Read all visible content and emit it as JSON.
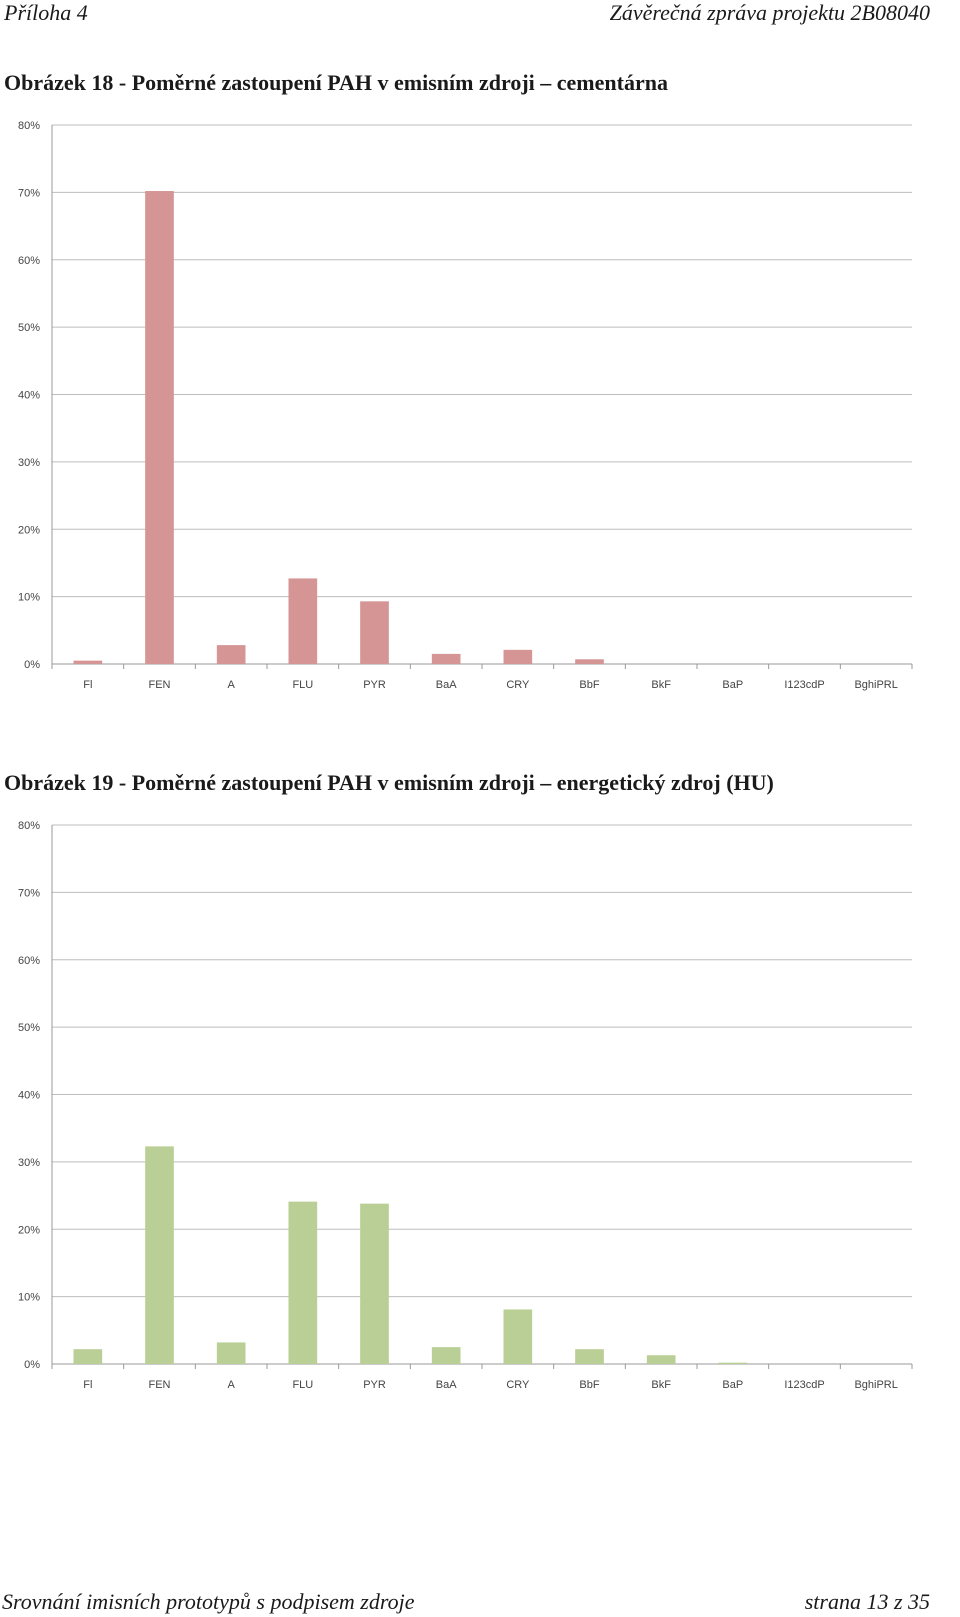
{
  "header": {
    "left": "Příloha 4",
    "right": "Závěrečná zpráva projektu 2B08040"
  },
  "captions": [
    "Obrázek 18 - Poměrné zastoupení PAH v emisním zdroji – cementárna",
    "Obrázek 19 - Poměrné zastoupení PAH v emisním zdroji – energetický zdroj (HU)"
  ],
  "footer": {
    "left": "Srovnání imisních prototypů s podpisem zdroje",
    "right": "strana 13 z 35"
  },
  "chart_data": [
    {
      "type": "bar",
      "categories": [
        "Fl",
        "FEN",
        "A",
        "FLU",
        "PYR",
        "BaA",
        "CRY",
        "BbF",
        "BkF",
        "BaP",
        "I123cdP",
        "BghiPRL"
      ],
      "values": [
        0.5,
        70.2,
        2.8,
        12.7,
        9.3,
        1.5,
        2.1,
        0.7,
        0,
        0,
        0,
        0
      ],
      "yticks": [
        "0%",
        "10%",
        "20%",
        "30%",
        "40%",
        "50%",
        "60%",
        "70%",
        "80%"
      ],
      "ylim": [
        0,
        80
      ],
      "grid": true,
      "color": "#d49594"
    },
    {
      "type": "bar",
      "categories": [
        "Fl",
        "FEN",
        "A",
        "FLU",
        "PYR",
        "BaA",
        "CRY",
        "BbF",
        "BkF",
        "BaP",
        "I123cdP",
        "BghiPRL"
      ],
      "values": [
        2.2,
        32.3,
        3.2,
        24.1,
        23.8,
        2.5,
        8.1,
        2.2,
        1.3,
        0.2,
        0,
        0
      ],
      "yticks": [
        "0%",
        "10%",
        "20%",
        "30%",
        "40%",
        "50%",
        "60%",
        "70%",
        "80%"
      ],
      "ylim": [
        0,
        80
      ],
      "grid": true,
      "color": "#bacf96"
    }
  ]
}
